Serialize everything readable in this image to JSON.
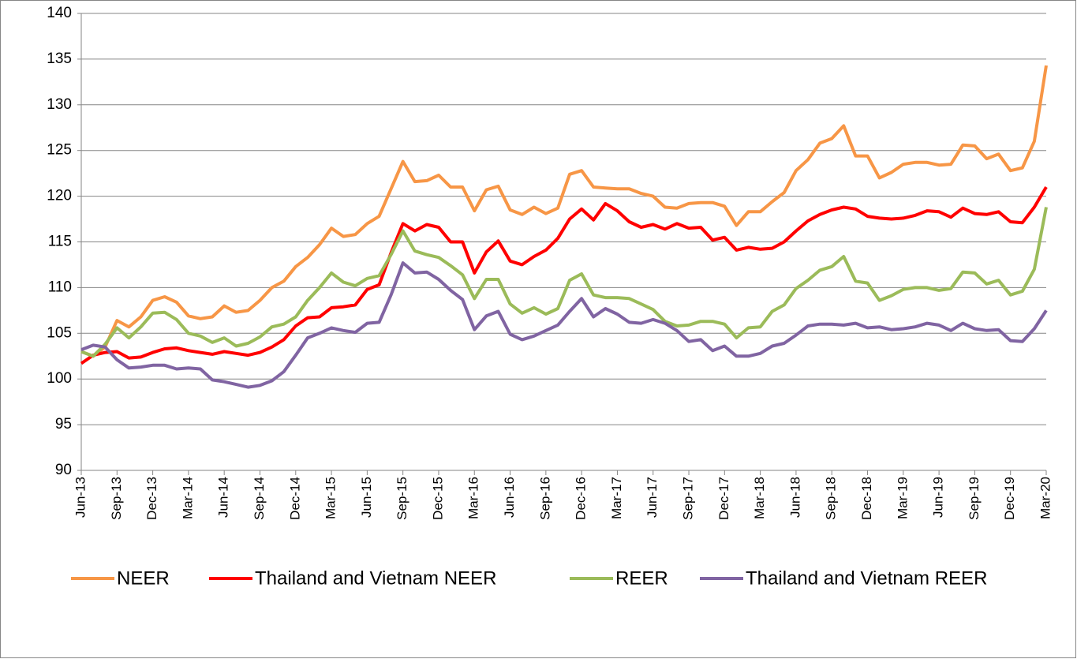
{
  "chart_data": {
    "type": "line",
    "categories": [
      "Jun-13",
      null,
      null,
      "Sep-13",
      null,
      null,
      "Dec-13",
      null,
      null,
      "Mar-14",
      null,
      null,
      "Jun-14",
      null,
      null,
      "Sep-14",
      null,
      null,
      "Dec-14",
      null,
      null,
      "Mar-15",
      null,
      null,
      "Jun-15",
      null,
      null,
      "Sep-15",
      null,
      null,
      "Dec-15",
      null,
      null,
      "Mar-16",
      null,
      null,
      "Jun-16",
      null,
      null,
      "Sep-16",
      null,
      null,
      "Dec-16",
      null,
      null,
      "Mar-17",
      null,
      null,
      "Jun-17",
      null,
      null,
      "Sep-17",
      null,
      null,
      "Dec-17",
      null,
      null,
      "Mar-18",
      null,
      null,
      "Jun-18",
      null,
      null,
      "Sep-18",
      null,
      null,
      "Dec-18",
      null,
      null,
      "Mar-19",
      null,
      null,
      "Jun-19",
      null,
      null,
      "Sep-19",
      null,
      null,
      "Dec-19",
      null,
      null,
      "Mar-20"
    ],
    "series": [
      {
        "name": "NEER",
        "color": "#f79646",
        "values": [
          103.0,
          102.5,
          103.5,
          106.4,
          105.7,
          106.8,
          108.6,
          109.0,
          108.4,
          106.9,
          106.6,
          106.8,
          108.0,
          107.3,
          107.5,
          108.6,
          110.0,
          110.7,
          112.3,
          113.3,
          114.7,
          116.5,
          115.6,
          115.8,
          117.0,
          117.8,
          120.8,
          123.8,
          121.6,
          121.7,
          122.3,
          121.0,
          121.0,
          118.4,
          120.7,
          121.1,
          118.5,
          118.0,
          118.8,
          118.1,
          118.7,
          122.4,
          122.8,
          121.0,
          120.9,
          120.8,
          120.8,
          120.3,
          120.0,
          118.8,
          118.7,
          119.2,
          119.3,
          119.3,
          118.9,
          116.8,
          118.3,
          118.3,
          119.4,
          120.4,
          122.8,
          124.0,
          125.8,
          126.3,
          127.7,
          124.4,
          124.4,
          122.0,
          122.6,
          123.5,
          123.7,
          123.7,
          123.4,
          123.5,
          125.6,
          125.5,
          124.1,
          124.6,
          122.8,
          123.1,
          126.0,
          134.3
        ]
      },
      {
        "name": "Thailand and Vietnam NEER",
        "color": "#ff0000",
        "values": [
          101.7,
          102.6,
          102.9,
          103.0,
          102.3,
          102.4,
          102.9,
          103.3,
          103.4,
          103.1,
          102.9,
          102.7,
          103.0,
          102.8,
          102.6,
          102.9,
          103.5,
          104.3,
          105.8,
          106.7,
          106.8,
          107.8,
          107.9,
          108.1,
          109.8,
          110.3,
          113.8,
          117.0,
          116.2,
          116.9,
          116.6,
          115.0,
          115.0,
          111.6,
          113.9,
          115.1,
          112.9,
          112.5,
          113.4,
          114.1,
          115.4,
          117.5,
          118.6,
          117.4,
          119.2,
          118.4,
          117.2,
          116.6,
          116.9,
          116.4,
          117.0,
          116.5,
          116.6,
          115.2,
          115.5,
          114.1,
          114.4,
          114.2,
          114.3,
          115.0,
          116.2,
          117.3,
          118.0,
          118.5,
          118.8,
          118.6,
          117.8,
          117.6,
          117.5,
          117.6,
          117.9,
          118.4,
          118.3,
          117.7,
          118.7,
          118.1,
          118.0,
          118.3,
          117.2,
          117.1,
          118.8,
          121.0
        ]
      },
      {
        "name": "REER",
        "color": "#9bbb59",
        "values": [
          103.0,
          102.5,
          103.8,
          105.6,
          104.5,
          105.7,
          107.2,
          107.3,
          106.5,
          105.0,
          104.7,
          104.0,
          104.5,
          103.6,
          103.9,
          104.6,
          105.7,
          106.0,
          106.8,
          108.6,
          110.0,
          111.6,
          110.6,
          110.2,
          111.0,
          111.3,
          113.6,
          116.2,
          114.0,
          113.6,
          113.3,
          112.4,
          111.4,
          108.8,
          110.9,
          110.9,
          108.2,
          107.2,
          107.8,
          107.1,
          107.7,
          110.8,
          111.5,
          109.2,
          108.9,
          108.9,
          108.8,
          108.2,
          107.6,
          106.3,
          105.8,
          105.9,
          106.3,
          106.3,
          106.0,
          104.5,
          105.6,
          105.7,
          107.4,
          108.1,
          109.9,
          110.8,
          111.9,
          112.3,
          113.4,
          110.7,
          110.5,
          108.6,
          109.1,
          109.8,
          110.0,
          110.0,
          109.7,
          109.9,
          111.7,
          111.6,
          110.4,
          110.8,
          109.2,
          109.6,
          112.0,
          118.8
        ]
      },
      {
        "name": "Thailand and Vietnam REER",
        "color": "#8064a2",
        "values": [
          103.2,
          103.7,
          103.5,
          102.1,
          101.2,
          101.3,
          101.5,
          101.5,
          101.1,
          101.2,
          101.1,
          99.9,
          99.7,
          99.4,
          99.1,
          99.3,
          99.8,
          100.8,
          102.6,
          104.5,
          105.0,
          105.6,
          105.3,
          105.1,
          106.1,
          106.2,
          109.2,
          112.7,
          111.6,
          111.7,
          110.9,
          109.7,
          108.7,
          105.4,
          106.9,
          107.4,
          104.9,
          104.3,
          104.7,
          105.3,
          105.9,
          107.4,
          108.8,
          106.8,
          107.7,
          107.1,
          106.2,
          106.1,
          106.5,
          106.1,
          105.3,
          104.1,
          104.3,
          103.1,
          103.6,
          102.5,
          102.5,
          102.8,
          103.6,
          103.9,
          104.8,
          105.8,
          106.0,
          106.0,
          105.9,
          106.1,
          105.6,
          105.7,
          105.4,
          105.5,
          105.7,
          106.1,
          105.9,
          105.3,
          106.1,
          105.5,
          105.3,
          105.4,
          104.2,
          104.1,
          105.5,
          107.5
        ]
      }
    ],
    "ylim": [
      90,
      140
    ],
    "yticks": [
      90,
      95,
      100,
      105,
      110,
      115,
      120,
      125,
      130,
      135,
      140
    ],
    "grid": true,
    "legend": "bottom"
  }
}
